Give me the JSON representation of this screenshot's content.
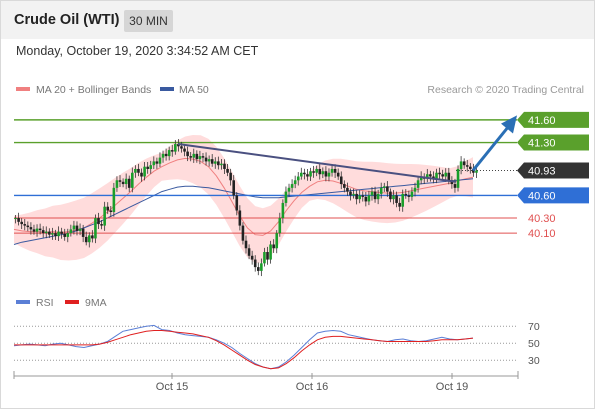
{
  "header": {
    "instrument": "Crude Oil (WTI)",
    "timeframe": "30 MIN",
    "timestamp": "Monday, October 19, 2020 3:34:52 AM CET"
  },
  "legend": {
    "ma20_label": "MA 20 + Bollinger Bands",
    "ma50_label": "MA 50",
    "ma20_color": "#f08080",
    "ma50_color": "#3a5aa0",
    "attribution": "Research © 2020 Trading Central"
  },
  "rsi_legend": {
    "rsi_label": "RSI",
    "ma_label": "9MA",
    "rsi_color": "#5b7fd6",
    "ma_color": "#e02020"
  },
  "colors": {
    "resistance": "#5aa02c",
    "support": "#2f6fd6",
    "support_minor": "#e05050",
    "current": "#333333",
    "arrow": "#2a6fb5",
    "band": "#ffd0d0",
    "candle": "#1a9e2a",
    "trendline": "#4a5080"
  },
  "chart_data": [
    {
      "type": "candlestick",
      "title": "Crude Oil (WTI)",
      "timeframe": "30 MIN",
      "x_ticks": [
        "Oct 15",
        "Oct 16",
        "Oct 19"
      ],
      "y_range": [
        39.4,
        41.85
      ],
      "levels": [
        {
          "value": 41.6,
          "label": "41.60",
          "kind": "resistance"
        },
        {
          "value": 41.3,
          "label": "41.30",
          "kind": "resistance"
        },
        {
          "value": 40.93,
          "label": "40.93",
          "kind": "current"
        },
        {
          "value": 40.6,
          "label": "40.60",
          "kind": "support"
        },
        {
          "value": 40.3,
          "label": "40.30",
          "kind": "support_minor"
        },
        {
          "value": 40.1,
          "label": "40.10",
          "kind": "support_minor"
        }
      ],
      "closes": [
        40.3,
        40.25,
        40.22,
        40.2,
        40.18,
        40.15,
        40.12,
        40.16,
        40.14,
        40.1,
        40.12,
        40.08,
        40.1,
        40.06,
        40.12,
        40.09,
        40.05,
        40.1,
        40.15,
        40.2,
        40.13,
        40.16,
        40.05,
        39.98,
        40.07,
        40.03,
        40.3,
        40.22,
        40.2,
        40.45,
        40.4,
        40.38,
        40.7,
        40.8,
        40.78,
        40.75,
        40.82,
        40.7,
        40.9,
        40.95,
        40.9,
        40.85,
        40.98,
        40.95,
        41.0,
        41.05,
        41.02,
        41.1,
        41.15,
        41.12,
        41.2,
        41.18,
        41.28,
        41.25,
        41.22,
        41.18,
        41.12,
        41.1,
        41.15,
        41.08,
        41.12,
        41.1,
        41.05,
        41.08,
        41.02,
        41.05,
        41.0,
        41.02,
        40.95,
        40.9,
        40.8,
        40.6,
        40.4,
        40.2,
        40.0,
        39.9,
        39.8,
        39.75,
        39.65,
        39.6,
        39.7,
        39.85,
        39.75,
        39.95,
        39.9,
        40.1,
        40.3,
        40.5,
        40.65,
        40.7,
        40.75,
        40.8,
        40.85,
        40.9,
        40.88,
        40.85,
        40.92,
        40.9,
        40.95,
        40.88,
        40.92,
        40.85,
        40.9,
        40.95,
        40.9,
        40.85,
        40.75,
        40.7,
        40.65,
        40.6,
        40.62,
        40.55,
        40.6,
        40.58,
        40.52,
        40.6,
        40.65,
        40.55,
        40.62,
        40.7,
        40.72,
        40.65,
        40.55,
        40.6,
        40.5,
        40.45,
        40.62,
        40.6,
        40.58,
        40.65,
        40.7,
        40.8,
        40.85,
        40.82,
        40.88,
        40.85,
        40.82,
        40.9,
        40.88,
        40.85,
        40.9,
        40.8,
        40.75,
        40.7,
        40.95,
        41.05,
        41.0,
        40.98,
        40.95,
        40.9,
        40.93
      ],
      "ma20": [
        40.15,
        40.13,
        40.12,
        40.12,
        40.11,
        40.12,
        40.11,
        40.12,
        40.14,
        40.17,
        40.23,
        40.3,
        40.38,
        40.47,
        40.56,
        40.65,
        40.75,
        40.84,
        40.92,
        40.98,
        41.03,
        41.07,
        41.09,
        41.08,
        41.05,
        40.98,
        40.86,
        40.7,
        40.52,
        40.33,
        40.17,
        40.08,
        40.07,
        40.13,
        40.25,
        40.4,
        40.53,
        40.64,
        40.72,
        40.78,
        40.8,
        40.79,
        40.76,
        40.72,
        40.68,
        40.66,
        40.65,
        40.64,
        40.63,
        40.63,
        40.64,
        40.66,
        40.68,
        40.7,
        40.72,
        40.74,
        40.76,
        40.79,
        40.82,
        40.84
      ],
      "ma50": [
        39.95,
        39.98,
        40.0,
        40.02,
        40.04,
        40.06,
        40.08,
        40.1,
        40.13,
        40.17,
        40.21,
        40.25,
        40.3,
        40.35,
        40.4,
        40.45,
        40.5,
        40.55,
        40.6,
        40.65,
        40.68,
        40.71,
        40.72,
        40.72,
        40.71,
        40.7,
        40.68,
        40.66,
        40.64,
        40.62,
        40.6,
        40.58,
        40.57,
        40.57,
        40.57,
        40.58,
        40.59,
        40.6,
        40.61,
        40.62,
        40.63,
        40.64,
        40.65,
        40.66,
        40.67,
        40.68,
        40.69,
        40.7,
        40.71,
        40.72,
        40.73,
        40.74,
        40.75,
        40.76,
        40.77,
        40.78,
        40.79,
        40.8,
        40.81,
        40.82
      ]
    },
    {
      "type": "line",
      "title": "RSI",
      "y_ticks": [
        70,
        50,
        30
      ],
      "y_range": [
        15,
        82
      ],
      "x_ticks": [
        "Oct 15",
        "Oct 16",
        "Oct 19"
      ],
      "rsi": [
        47,
        48,
        49,
        48,
        47,
        49,
        50,
        48,
        46,
        45,
        47,
        49,
        52,
        58,
        64,
        66,
        68,
        70,
        71,
        66,
        65,
        62,
        60,
        59,
        58,
        57,
        54,
        50,
        45,
        38,
        32,
        26,
        22,
        20,
        22,
        28,
        36,
        45,
        54,
        62,
        64,
        65,
        64,
        60,
        58,
        56,
        54,
        53,
        52,
        54,
        55,
        53,
        52,
        53,
        55,
        57,
        55,
        54,
        55,
        56
      ],
      "rsi_ma": [
        48,
        48,
        48,
        48,
        48,
        48,
        48,
        48,
        48,
        48,
        48,
        49,
        51,
        54,
        57,
        60,
        62,
        64,
        65,
        65,
        64,
        63,
        62,
        61,
        59,
        57,
        53,
        48,
        42,
        36,
        30,
        25,
        22,
        20,
        21,
        26,
        33,
        41,
        48,
        54,
        57,
        58,
        58,
        57,
        56,
        55,
        54,
        53,
        52,
        52,
        52,
        52,
        52,
        52,
        53,
        54,
        54,
        54,
        55,
        56
      ]
    }
  ]
}
